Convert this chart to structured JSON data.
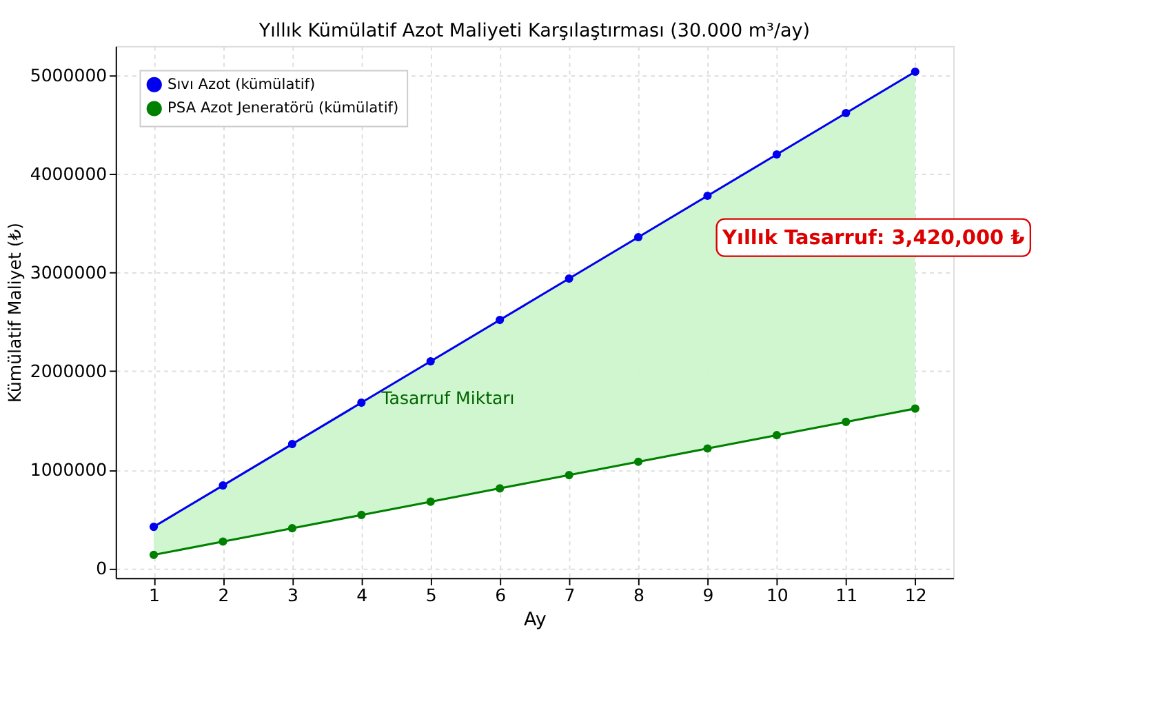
{
  "chart_data": {
    "type": "line",
    "title": "Yıllık Kümülatif Azot Maliyeti Karşılaştırması (30.000 m³/ay)",
    "xlabel": "Ay",
    "ylabel": "Kümülatif Maliyet (₺)",
    "x": [
      1,
      2,
      3,
      4,
      5,
      6,
      7,
      8,
      9,
      10,
      11,
      12
    ],
    "series": [
      {
        "name": "Sıvı Azot (kümülatif)",
        "color": "#0000ee",
        "values": [
          420000,
          840000,
          1260000,
          1680000,
          2100000,
          2520000,
          2940000,
          3360000,
          3780000,
          4200000,
          4620000,
          5040000
        ],
        "lower": [
          135000,
          270000,
          405000,
          540000,
          675000,
          810000,
          945000,
          1080000,
          1215000,
          1350000,
          1485000,
          1620000
        ],
        "upper": [
          420000,
          840000,
          1260000,
          1680000,
          2100000,
          2520000,
          2940000,
          3360000,
          3780000,
          4200000,
          4620000,
          5040000
        ]
      },
      {
        "name": "PSA Azot Jeneratörü (kümülatif)",
        "color": "#008000",
        "values": [
          135000,
          270000,
          405000,
          540000,
          675000,
          810000,
          945000,
          1080000,
          1215000,
          1350000,
          1485000,
          1620000
        ]
      }
    ],
    "annotations": [
      "Tasarruf Miktarı",
      "Yıllık Tasarruf: 3,420,000 ₺"
    ],
    "xlim": [
      0.45,
      12.55
    ],
    "xticks": [
      1,
      2,
      3,
      4,
      5,
      6,
      7,
      8,
      9,
      10,
      11,
      12
    ],
    "ylim": [
      -100000,
      5300000
    ],
    "yticks": [
      0,
      1000000,
      2000000,
      3000000,
      4000000,
      5000000
    ],
    "grid": true,
    "legend": "top left",
    "marker": "circle",
    "line_style": "solid"
  }
}
